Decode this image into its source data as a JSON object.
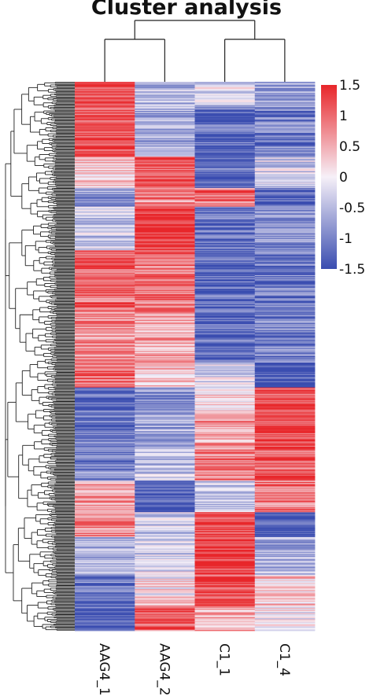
{
  "chart_data": {
    "type": "heatmap",
    "title": "Cluster analysis",
    "columns": [
      "AAG4_1",
      "AAG4_2",
      "C1_1",
      "C1_4"
    ],
    "colorbar": {
      "ticks": [
        "1.5",
        "1",
        "0.5",
        "0",
        "-0.5",
        "-1",
        "-1.5"
      ],
      "range": [
        -1.5,
        1.5
      ],
      "low_color": "#3a4db0",
      "mid_color": "#f6f0f8",
      "high_color": "#e8262a"
    },
    "row_blocks": [
      {
        "values": [
          1.3,
          -0.5,
          -0.2,
          -0.8
        ],
        "weight": 4
      },
      {
        "values": [
          1.2,
          -0.6,
          -1.2,
          -1.0
        ],
        "weight": 8
      },
      {
        "values": [
          0.4,
          1.2,
          -1.2,
          -0.3
        ],
        "weight": 5
      },
      {
        "values": [
          -0.8,
          0.8,
          1.0,
          -1.2
        ],
        "weight": 3
      },
      {
        "values": [
          -0.4,
          1.5,
          -1.1,
          -0.8
        ],
        "weight": 7
      },
      {
        "values": [
          1.0,
          0.9,
          -1.2,
          -1.1
        ],
        "weight": 10
      },
      {
        "values": [
          0.7,
          0.6,
          -1.3,
          -1.0
        ],
        "weight": 8
      },
      {
        "values": [
          1.1,
          0.3,
          -0.2,
          -1.4
        ],
        "weight": 4
      },
      {
        "values": [
          -1.3,
          -0.8,
          0.2,
          1.2
        ],
        "weight": 4
      },
      {
        "values": [
          -1.2,
          -0.6,
          0.6,
          1.3
        ],
        "weight": 6
      },
      {
        "values": [
          -1.0,
          -0.4,
          0.9,
          1.1
        ],
        "weight": 5
      },
      {
        "values": [
          0.6,
          -1.4,
          -0.4,
          0.9
        ],
        "weight": 5
      },
      {
        "values": [
          0.9,
          -0.3,
          1.3,
          -1.3
        ],
        "weight": 4
      },
      {
        "values": [
          -0.6,
          -0.2,
          1.4,
          -0.6
        ],
        "weight": 6
      },
      {
        "values": [
          -1.0,
          0.1,
          1.2,
          0.3
        ],
        "weight": 5
      },
      {
        "values": [
          -1.3,
          1.0,
          0.5,
          0.0
        ],
        "weight": 4
      }
    ]
  }
}
